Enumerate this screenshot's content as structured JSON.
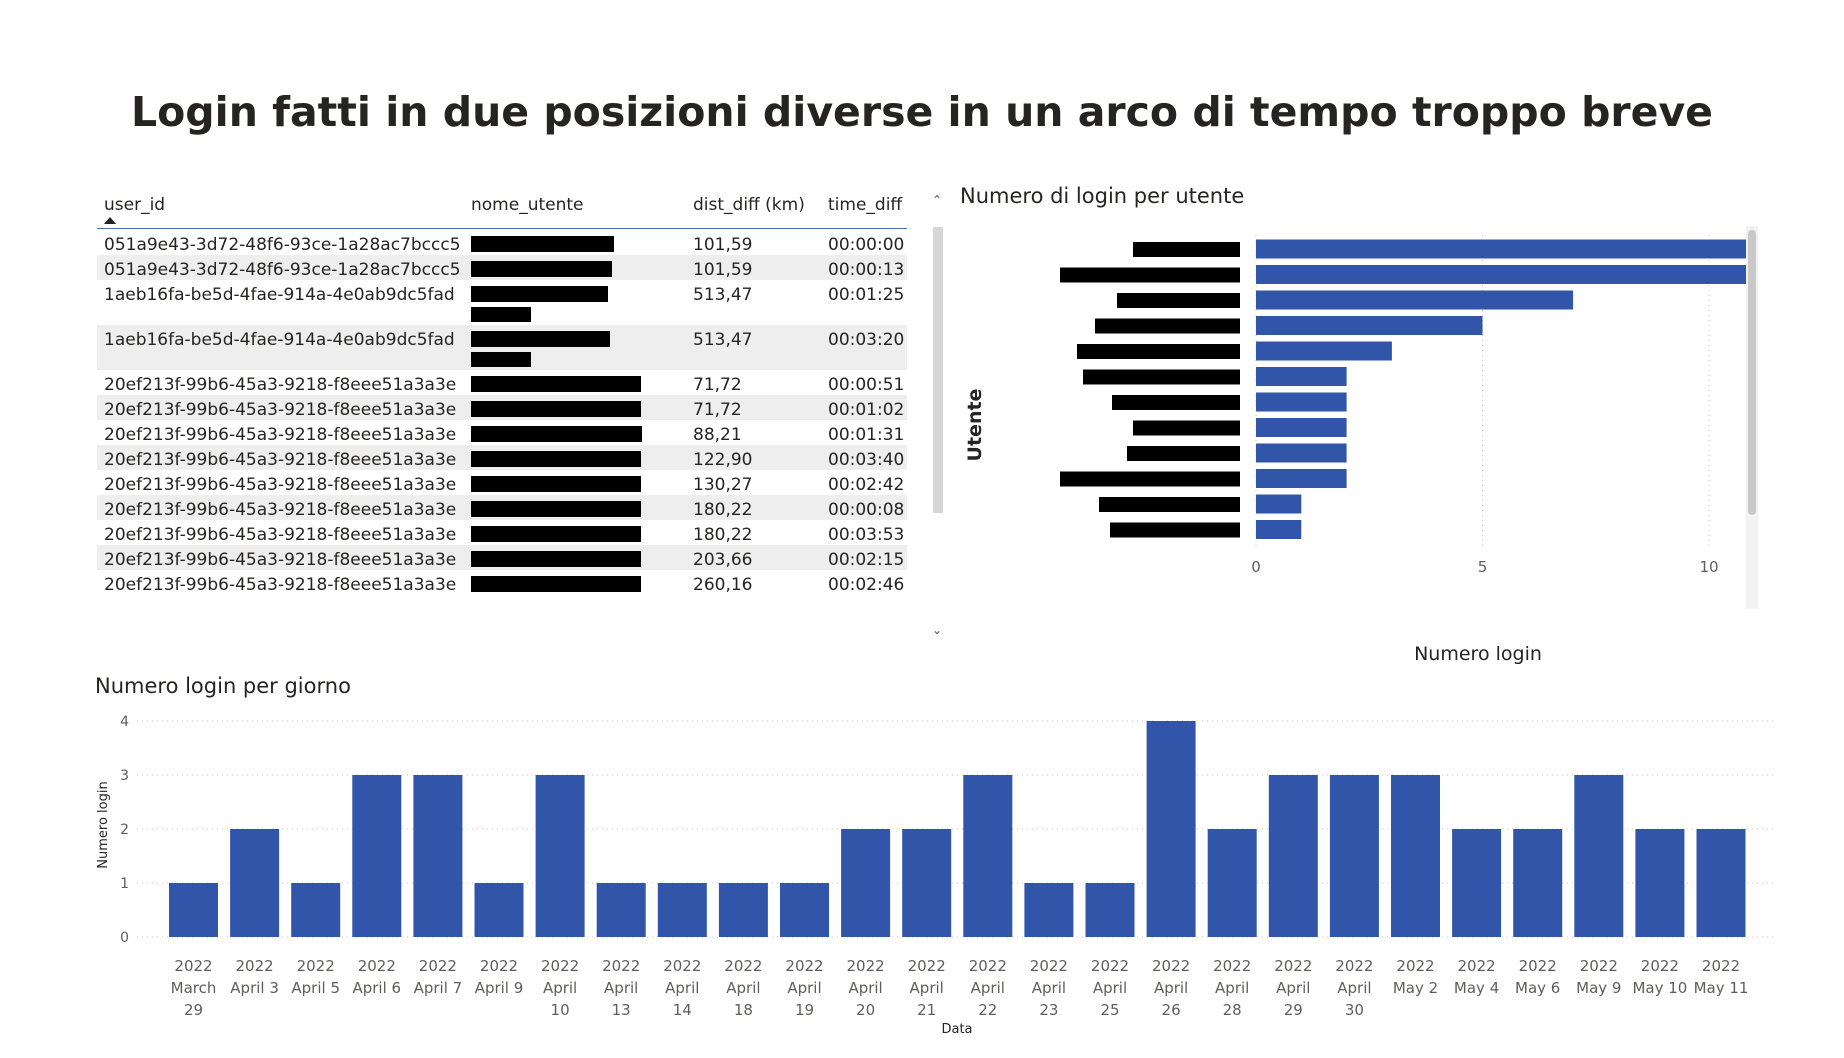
{
  "title": "Login fatti in due posizioni diverse in un arco di tempo troppo breve",
  "table": {
    "columns": [
      "user_id",
      "nome_utente",
      "dist_diff (km)",
      "time_diff"
    ],
    "sorted_column": "user_id",
    "sort_direction": "ascending",
    "rows": [
      {
        "user_id": "051a9e43-3d72-48f6-93ce-1a28ac7bccc5",
        "nome_utente": "[redacted]",
        "dist_diff": "101,59",
        "time_diff": "00:00:00"
      },
      {
        "user_id": "051a9e43-3d72-48f6-93ce-1a28ac7bccc5",
        "nome_utente": "[redacted]",
        "dist_diff": "101,59",
        "time_diff": "00:00:13"
      },
      {
        "user_id": "1aeb16fa-be5d-4fae-914a-4e0ab9dc5fad",
        "nome_utente": "[redacted]",
        "dist_diff": "513,47",
        "time_diff": "00:01:25"
      },
      {
        "user_id": "1aeb16fa-be5d-4fae-914a-4e0ab9dc5fad",
        "nome_utente": "[redacted]",
        "dist_diff": "513,47",
        "time_diff": "00:03:20"
      },
      {
        "user_id": "20ef213f-99b6-45a3-9218-f8eee51a3a3e",
        "nome_utente": "[redacted]",
        "dist_diff": "71,72",
        "time_diff": "00:00:51"
      },
      {
        "user_id": "20ef213f-99b6-45a3-9218-f8eee51a3a3e",
        "nome_utente": "[redacted]",
        "dist_diff": "71,72",
        "time_diff": "00:01:02"
      },
      {
        "user_id": "20ef213f-99b6-45a3-9218-f8eee51a3a3e",
        "nome_utente": "[redacted]",
        "dist_diff": "88,21",
        "time_diff": "00:01:31"
      },
      {
        "user_id": "20ef213f-99b6-45a3-9218-f8eee51a3a3e",
        "nome_utente": "[redacted]",
        "dist_diff": "122,90",
        "time_diff": "00:03:40"
      },
      {
        "user_id": "20ef213f-99b6-45a3-9218-f8eee51a3a3e",
        "nome_utente": "[redacted]",
        "dist_diff": "130,27",
        "time_diff": "00:02:42"
      },
      {
        "user_id": "20ef213f-99b6-45a3-9218-f8eee51a3a3e",
        "nome_utente": "[redacted]",
        "dist_diff": "180,22",
        "time_diff": "00:00:08"
      },
      {
        "user_id": "20ef213f-99b6-45a3-9218-f8eee51a3a3e",
        "nome_utente": "[redacted]",
        "dist_diff": "180,22",
        "time_diff": "00:03:53"
      },
      {
        "user_id": "20ef213f-99b6-45a3-9218-f8eee51a3a3e",
        "nome_utente": "[redacted]",
        "dist_diff": "203,66",
        "time_diff": "00:02:15"
      },
      {
        "user_id": "20ef213f-99b6-45a3-9218-f8eee51a3a3e",
        "nome_utente": "[redacted]",
        "dist_diff": "260,16",
        "time_diff": "00:02:46"
      }
    ]
  },
  "colors": {
    "bar": "#3155a8",
    "text": "#252423",
    "axis_text": "#605e5c",
    "redaction": "#000000",
    "row_shade": "#eeeeee",
    "header_rule": "#4a6fb4",
    "gridline": "#c8c6c4"
  },
  "icons": {
    "scroll_up": "chevron-up-icon",
    "scroll_down": "chevron-down-icon",
    "sort": "sort-ascending-icon"
  },
  "chart_data": [
    {
      "type": "bar",
      "orientation": "horizontal",
      "title": "Numero di login per utente",
      "xlabel": "Numero login",
      "ylabel": "Utente",
      "categories": [
        "[redacted]",
        "[redacted]",
        "[redacted]",
        "[redacted]",
        "[redacted]",
        "[redacted]",
        "[redacted]",
        "[redacted]",
        "[redacted]",
        "[redacted]",
        "[redacted]",
        "[redacted]"
      ],
      "values": [
        11,
        11,
        7,
        5,
        3,
        2,
        2,
        2,
        2,
        2,
        1,
        1
      ],
      "xlim": [
        0,
        12
      ],
      "xticks": [
        0,
        5,
        10
      ],
      "xtick_labels": [
        "0",
        "5",
        "10"
      ],
      "grid": true,
      "legend": "none"
    },
    {
      "type": "bar",
      "title": "Numero login per giorno",
      "xlabel": "Data",
      "ylabel": "Numero login",
      "categories": [
        [
          "2022",
          "March",
          "29"
        ],
        [
          "2022",
          "April 3"
        ],
        [
          "2022",
          "April 5"
        ],
        [
          "2022",
          "April 6"
        ],
        [
          "2022",
          "April 7"
        ],
        [
          "2022",
          "April 9"
        ],
        [
          "2022",
          "April",
          "10"
        ],
        [
          "2022",
          "April",
          "13"
        ],
        [
          "2022",
          "April",
          "14"
        ],
        [
          "2022",
          "April",
          "18"
        ],
        [
          "2022",
          "April",
          "19"
        ],
        [
          "2022",
          "April",
          "20"
        ],
        [
          "2022",
          "April",
          "21"
        ],
        [
          "2022",
          "April",
          "22"
        ],
        [
          "2022",
          "April",
          "23"
        ],
        [
          "2022",
          "April",
          "25"
        ],
        [
          "2022",
          "April",
          "26"
        ],
        [
          "2022",
          "April",
          "28"
        ],
        [
          "2022",
          "April",
          "29"
        ],
        [
          "2022",
          "April",
          "30"
        ],
        [
          "2022",
          "May 2"
        ],
        [
          "2022",
          "May 4"
        ],
        [
          "2022",
          "May 6"
        ],
        [
          "2022",
          "May 9"
        ],
        [
          "2022",
          "May 10"
        ],
        [
          "2022",
          "May 11"
        ]
      ],
      "values": [
        1,
        2,
        1,
        3,
        3,
        1,
        3,
        1,
        1,
        1,
        1,
        2,
        2,
        3,
        1,
        1,
        4,
        2,
        3,
        3,
        3,
        2,
        2,
        3,
        2,
        2
      ],
      "ylim": [
        0,
        4
      ],
      "yticks": [
        "0",
        "1",
        "2",
        "3",
        "4"
      ],
      "grid": true,
      "legend": "none"
    }
  ]
}
